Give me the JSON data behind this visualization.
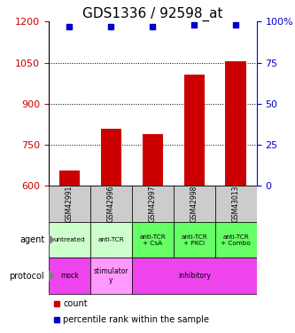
{
  "title": "GDS1336 / 92598_at",
  "samples": [
    "GSM42991",
    "GSM42996",
    "GSM42997",
    "GSM42998",
    "GSM43013"
  ],
  "counts": [
    655,
    810,
    790,
    1005,
    1055
  ],
  "percentiles": [
    97,
    97,
    97,
    98,
    98
  ],
  "ylim_left": [
    600,
    1200
  ],
  "yticks_left": [
    600,
    750,
    900,
    1050,
    1200
  ],
  "ylim_right": [
    0,
    100
  ],
  "yticks_right": [
    0,
    25,
    50,
    75,
    100
  ],
  "bar_color": "#cc0000",
  "scatter_color": "#0000cc",
  "agent_labels": [
    "untreated",
    "anti-TCR",
    "anti-TCR\n+ CsA",
    "anti-TCR\n+ PKCi",
    "anti-TCR\n+ Combo"
  ],
  "agent_colors_list": [
    "#ccffcc",
    "#ccffcc",
    "#66ff66",
    "#66ff66",
    "#66ff66"
  ],
  "sample_bg_color": "#cccccc",
  "mock_color": "#ee44ee",
  "stimulatory_color": "#ff99ff",
  "inhibitory_color": "#ee44ee",
  "title_fontsize": 11,
  "tick_fontsize": 8
}
